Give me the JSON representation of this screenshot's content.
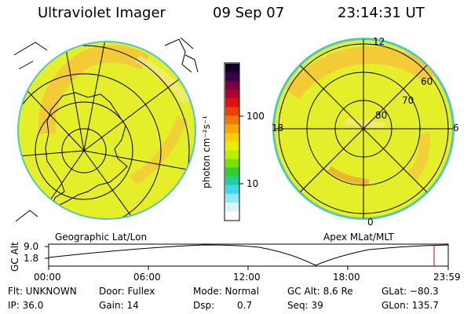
{
  "header": {
    "instrument": "Ultraviolet Imager",
    "date": "09 Sep 07",
    "time": "23:14:31 UT"
  },
  "left_panel": {
    "label": "Geographic Lat/Lon"
  },
  "right_panel": {
    "label": "Apex  MLat/MLT",
    "mlt_labels": {
      "top": "12",
      "left": "18",
      "right": "6",
      "bottom": "0"
    },
    "lat_labels": [
      "60",
      "70",
      "80"
    ]
  },
  "colorbar": {
    "unit": "photon cm⁻²s⁻¹",
    "ticks": [
      "100",
      "10"
    ],
    "colors": [
      "#10002a",
      "#3a0048",
      "#7a0040",
      "#b00030",
      "#e01010",
      "#f04000",
      "#f07800",
      "#f8a800",
      "#f8d000",
      "#e8f000",
      "#b8f000",
      "#78e000",
      "#30d030",
      "#20d0a0",
      "#40d8e8",
      "#90e8f8",
      "#d8f4fc",
      "#ffffff"
    ]
  },
  "timeline": {
    "ylabel": "GC Alt",
    "yticks": [
      "9.0",
      "1.8"
    ],
    "xticks": [
      "00:00",
      "06:00",
      "12:00",
      "18:00",
      "23:59"
    ],
    "marker_color": "#d00000"
  },
  "info": {
    "flt": "Flt: UNKNOWN",
    "door": "Door: Fullex",
    "mode": "Mode: Normal",
    "gcalt": "GC Alt: 8.6 Re",
    "glat": "GLat: −80.3",
    "ip": "IP: 36.0",
    "gain": "Gain: 14",
    "dsp_label": "Dsp:",
    "dsp_value": "0.7",
    "seq": "Seq: 39",
    "glon": "GLon: 135.7"
  },
  "colors": {
    "disk_fill": "#e4ef2a",
    "aurora": "#f4c030",
    "limb": "#50c8c0",
    "grid": "#000000"
  }
}
